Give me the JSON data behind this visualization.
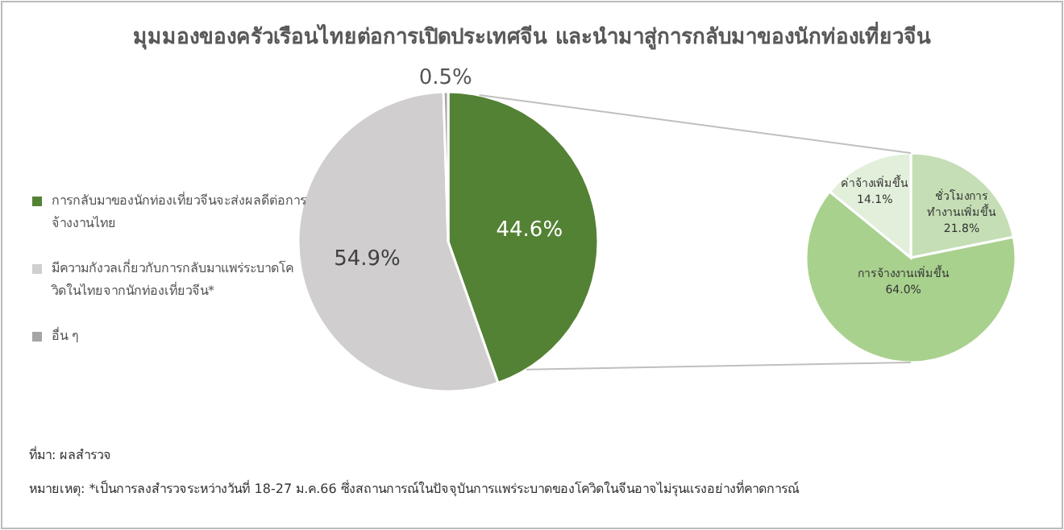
{
  "chart_data": [
    {
      "type": "pie",
      "title": "มุมมองของครัวเรือนไทยต่อการเปิดประเทศจีน และนำมาสู่การกลับมาของนักท่องเที่ยวจีน",
      "categories": [
        "การกลับมาของนักท่องเที่ยวจีนจะส่งผลดีต่อการจ้างงานไทย",
        "มีความกังวลเกี่ยวกับการกลับมาแพร่ระบาดโควิดในไทยจากนักท่องเที่ยวจีน*",
        "อื่น ๆ"
      ],
      "values": [
        44.6,
        54.9,
        0.5
      ],
      "value_labels": [
        "44.6%",
        "54.9%",
        "0.5%"
      ],
      "colors": [
        "#548235",
        "#d0cece",
        "#a5a5a5"
      ],
      "legend": "left",
      "annotations": [
        "ที่มา: ผลสำรวจ",
        "หมายเหตุ: *เป็นการลงสำรวจระหว่างวันที่ 18-27 ม.ค.66 ซึ่งสถานการณ์ในปัจจุบันการแพร่ระบาดของโควิดในจีนอาจไม่รุนแรงอย่างที่คาดการณ์"
      ]
    },
    {
      "type": "pie",
      "categories": [
        "ชั่วโมงการทำงานเพิ่มขึ้น",
        "การจ้างงานเพิ่มขึ้น",
        "ค่าจ้างเพิ่มขึ้น"
      ],
      "values": [
        21.8,
        64.0,
        14.1
      ],
      "value_labels": [
        "21.8%",
        "64.0%",
        "14.1%"
      ],
      "colors": [
        "#c5deb5",
        "#a9d18e",
        "#e2efda"
      ]
    }
  ]
}
